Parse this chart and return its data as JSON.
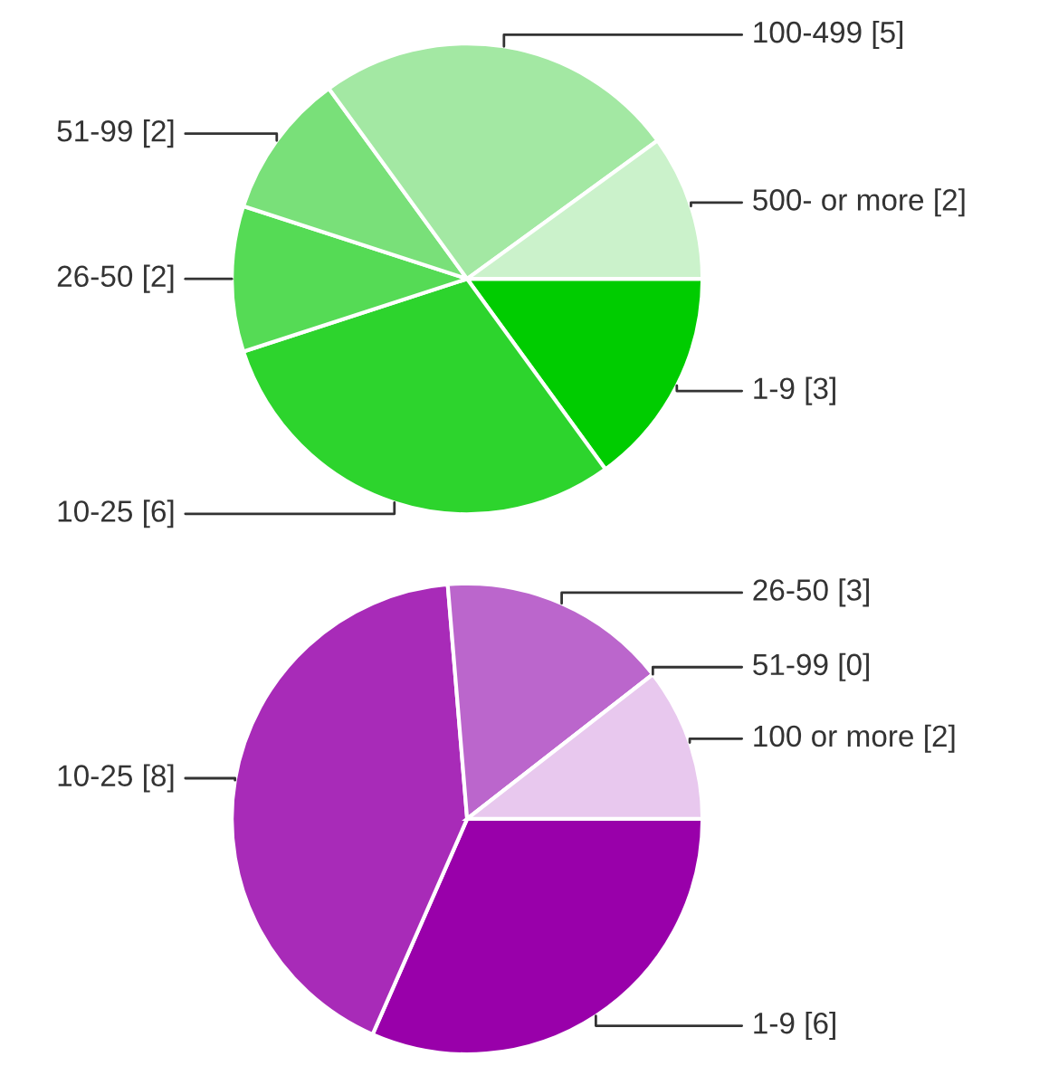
{
  "chart_data": [
    {
      "type": "pie",
      "categories": [
        "1-9",
        "10-25",
        "26-50",
        "51-99",
        "100-499",
        "500- or more"
      ],
      "values": [
        3,
        6,
        2,
        2,
        5,
        2
      ],
      "value_labels": [
        "[3]",
        "[6]",
        "[2]",
        "[2]",
        "[5]",
        "[2]"
      ],
      "colors": [
        "#00cc00",
        "#2dd42d",
        "#55db55",
        "#79e079",
        "#a3e8a3",
        "#cbf2cb"
      ]
    },
    {
      "type": "pie",
      "categories": [
        "1-9",
        "10-25",
        "26-50",
        "51-99",
        "100 or more"
      ],
      "values": [
        6,
        8,
        3,
        0,
        2
      ],
      "value_labels": [
        "[6]",
        "[8]",
        "[3]",
        "[0]",
        "[2]"
      ],
      "colors": [
        "#9900aa",
        "#a82bb8",
        "#bb66cc",
        "#cc88d8",
        "#e8c8ee"
      ]
    }
  ]
}
